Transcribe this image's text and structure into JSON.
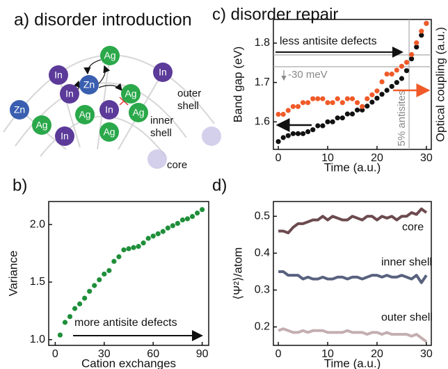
{
  "diagram": {
    "title": "a) disorder introduction",
    "nodes": [
      {
        "label": "Ag"
      },
      {
        "label": "In"
      },
      {
        "label": "Zn"
      },
      {
        "label": "In"
      },
      {
        "label": "In"
      },
      {
        "label": "Ag"
      },
      {
        "label": "Zn"
      },
      {
        "label": "Ag"
      },
      {
        "label": "In"
      },
      {
        "label": "Ag"
      },
      {
        "label": "Ag"
      },
      {
        "label": "In"
      },
      {
        "label": "Ag"
      }
    ],
    "labels": [
      "outer shell",
      "inner shell",
      "core"
    ]
  },
  "chart_data": [
    {
      "type": "scatter",
      "title": "b)",
      "x_label": "Cation exchanges",
      "y_label": "Variance",
      "x": [
        3,
        6,
        9,
        12,
        15,
        18,
        21,
        24,
        27,
        30,
        33,
        36,
        39,
        42,
        45,
        48,
        51,
        54,
        57,
        60,
        63,
        66,
        69,
        72,
        75,
        78,
        81,
        84,
        87,
        90
      ],
      "values": [
        1.04,
        1.15,
        1.2,
        1.27,
        1.31,
        1.36,
        1.42,
        1.47,
        1.52,
        1.57,
        1.6,
        1.68,
        1.72,
        1.78,
        1.79,
        1.8,
        1.81,
        1.84,
        1.88,
        1.9,
        1.92,
        1.94,
        1.97,
        1.99,
        2.01,
        2.04,
        2.05,
        2.07,
        2.1,
        2.13
      ],
      "color": "#1f8f3a",
      "xlim": [
        -4,
        94
      ],
      "ylim": [
        0.95,
        2.2
      ],
      "xticks": [
        0,
        30,
        60,
        90
      ],
      "yticks": [
        {
          "value": 1,
          "label": "1.0"
        },
        1.5,
        {
          "value": 2,
          "label": "2.0"
        }
      ],
      "annotations": [
        "more antisite defects"
      ]
    },
    {
      "type": "scatter",
      "title": "c) disorder repair",
      "x_label": "Time (a.u.)",
      "y_label": "Band gap (eV)",
      "y2_label": "Optical coupling (a.u.)",
      "x": [
        0,
        1,
        2,
        3,
        4,
        5,
        6,
        7,
        8,
        9,
        10,
        11,
        12,
        13,
        14,
        15,
        16,
        17,
        18,
        19,
        20,
        21,
        22,
        23,
        24,
        25,
        26,
        27,
        28,
        29,
        30
      ],
      "series": [
        {
          "color": "#111111",
          "values": [
            1.55,
            1.56,
            1.565,
            1.57,
            1.57,
            1.57,
            1.575,
            1.58,
            1.59,
            1.59,
            1.6,
            1.6,
            1.61,
            1.61,
            1.62,
            1.62,
            1.63,
            1.63,
            1.64,
            1.65,
            1.66,
            1.67,
            1.68,
            1.69,
            1.7,
            1.71,
            1.73,
            1.76,
            1.79,
            1.82,
            1.85
          ]
        },
        {
          "color": "#f05a28",
          "axis": "y2",
          "values": [
            27,
            27,
            30,
            33,
            33,
            36,
            36,
            39,
            39,
            39,
            36,
            36,
            39,
            36,
            39,
            39,
            36,
            33,
            39,
            42,
            45,
            52,
            58,
            58,
            61,
            64,
            67,
            73,
            82,
            91,
            97
          ]
        }
      ],
      "xlim": [
        -1,
        31
      ],
      "ylim": [
        1.53,
        1.86
      ],
      "y2lim": [
        0,
        100
      ],
      "xticks": [
        0,
        10,
        20,
        30
      ],
      "yticks": [
        1.6,
        1.7,
        1.8
      ],
      "hlines": [
        1.77,
        1.74
      ],
      "vline": 26.5,
      "annotations": [
        "less antisite defects",
        "-30 meV",
        "5% antisites"
      ]
    },
    {
      "type": "line",
      "title": "d)",
      "x_label": "Time (a.u.)",
      "y_label": "⟨Ψ²⟩/atom",
      "x": [
        0,
        1,
        2,
        3,
        4,
        5,
        6,
        7,
        8,
        9,
        10,
        11,
        12,
        13,
        14,
        15,
        16,
        17,
        18,
        19,
        20,
        21,
        22,
        23,
        24,
        25,
        26,
        27,
        28,
        29,
        30
      ],
      "series": [
        {
          "name": "core",
          "color": "#6b4a4e",
          "values": [
            0.46,
            0.46,
            0.455,
            0.47,
            0.48,
            0.48,
            0.485,
            0.49,
            0.49,
            0.5,
            0.49,
            0.5,
            0.495,
            0.49,
            0.49,
            0.5,
            0.495,
            0.49,
            0.5,
            0.5,
            0.49,
            0.5,
            0.495,
            0.5,
            0.49,
            0.5,
            0.5,
            0.51,
            0.505,
            0.52,
            0.51
          ]
        },
        {
          "name": "inner shell",
          "color": "#58627e",
          "values": [
            0.35,
            0.35,
            0.34,
            0.34,
            0.34,
            0.33,
            0.335,
            0.33,
            0.33,
            0.335,
            0.33,
            0.33,
            0.335,
            0.335,
            0.33,
            0.335,
            0.335,
            0.33,
            0.335,
            0.34,
            0.34,
            0.335,
            0.34,
            0.335,
            0.335,
            0.34,
            0.335,
            0.33,
            0.34,
            0.32,
            0.34
          ]
        },
        {
          "name": "outer shell",
          "color": "#c4aeb0",
          "values": [
            0.19,
            0.195,
            0.19,
            0.185,
            0.185,
            0.19,
            0.185,
            0.19,
            0.19,
            0.19,
            0.185,
            0.185,
            0.185,
            0.185,
            0.19,
            0.185,
            0.185,
            0.185,
            0.18,
            0.185,
            0.185,
            0.18,
            0.185,
            0.18,
            0.18,
            0.18,
            0.18,
            0.175,
            0.18,
            0.17,
            0.16
          ]
        }
      ],
      "xlim": [
        -1,
        31
      ],
      "ylim": [
        0.15,
        0.54
      ],
      "xticks": [
        0,
        10,
        20,
        30
      ],
      "yticks": [
        0.2,
        0.3,
        0.4,
        0.5
      ]
    }
  ]
}
